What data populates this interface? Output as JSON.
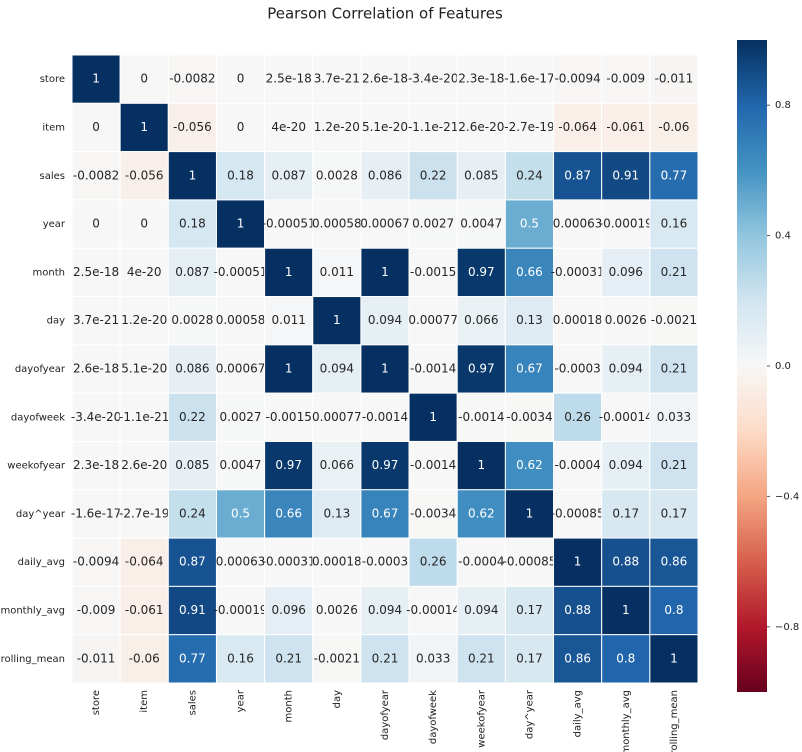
{
  "chart_data": {
    "type": "heatmap",
    "title": "Pearson Correlation of Features",
    "x": [
      "store",
      "item",
      "sales",
      "year",
      "month",
      "day",
      "dayofyear",
      "dayofweek",
      "weekofyear",
      "day^year",
      "daily_avg",
      "monthly_avg",
      "rolling_mean"
    ],
    "y": [
      "store",
      "item",
      "sales",
      "year",
      "month",
      "day",
      "dayofyear",
      "dayofweek",
      "weekofyear",
      "day^year",
      "daily_avg",
      "monthly_avg",
      "rolling_mean"
    ],
    "values": [
      [
        1,
        0,
        -0.0082,
        0,
        2.5e-18,
        3.7e-21,
        2.6e-18,
        -3.4e-20,
        2.3e-18,
        -1.6e-17,
        -0.0094,
        -0.009,
        -0.011
      ],
      [
        0,
        1,
        -0.056,
        0,
        4e-20,
        1.2e-20,
        5.1e-20,
        -1.1e-21,
        2.6e-20,
        -2.7e-19,
        -0.064,
        -0.061,
        -0.06
      ],
      [
        -0.0082,
        -0.056,
        1,
        0.18,
        0.087,
        0.0028,
        0.086,
        0.22,
        0.085,
        0.24,
        0.87,
        0.91,
        0.77
      ],
      [
        0,
        0,
        0.18,
        1,
        -0.00051,
        0.00058,
        0.00067,
        0.0027,
        0.0047,
        0.5,
        0.00063,
        -0.00019,
        0.16
      ],
      [
        2.5e-18,
        4e-20,
        0.087,
        -0.00051,
        1,
        0.011,
        1,
        -0.0015,
        0.97,
        0.66,
        -0.00031,
        0.096,
        0.21
      ],
      [
        3.7e-21,
        1.2e-20,
        0.0028,
        0.00058,
        0.011,
        1,
        0.094,
        0.00077,
        0.066,
        0.13,
        0.00018,
        0.0026,
        -0.0021
      ],
      [
        2.6e-18,
        5.1e-20,
        0.086,
        0.00067,
        1,
        0.094,
        1,
        -0.0014,
        0.97,
        0.67,
        -0.0003,
        0.094,
        0.21
      ],
      [
        -3.4e-20,
        -1.1e-21,
        0.22,
        0.0027,
        -0.0015,
        0.00077,
        -0.0014,
        1,
        -0.0014,
        -0.0034,
        0.26,
        -0.00014,
        0.033
      ],
      [
        2.3e-18,
        2.6e-20,
        0.085,
        0.0047,
        0.97,
        0.066,
        0.97,
        -0.0014,
        1,
        0.62,
        -0.0004,
        0.094,
        0.21
      ],
      [
        -1.6e-17,
        -2.7e-19,
        0.24,
        0.5,
        0.66,
        0.13,
        0.67,
        -0.0034,
        0.62,
        1,
        -0.00085,
        0.17,
        0.17
      ],
      [
        -0.0094,
        -0.064,
        0.87,
        0.00063,
        -0.00031,
        0.00018,
        -0.0003,
        0.26,
        -0.0004,
        -0.00085,
        1,
        0.88,
        0.86
      ],
      [
        -0.009,
        -0.061,
        0.91,
        -0.00019,
        0.096,
        0.0026,
        0.094,
        -0.00014,
        0.094,
        0.17,
        0.88,
        1,
        0.8
      ],
      [
        -0.011,
        -0.06,
        0.77,
        0.16,
        0.21,
        -0.0021,
        0.21,
        0.033,
        0.21,
        0.17,
        0.86,
        0.8,
        1
      ]
    ],
    "colormap": "RdBu",
    "zlim": [
      -1,
      1
    ],
    "zticks": [
      {
        "value": -0.8,
        "label": "−0.8"
      },
      {
        "value": -0.4,
        "label": "−0.4"
      },
      {
        "value": 0,
        "label": "0.0"
      },
      0.4,
      0.8
    ]
  }
}
